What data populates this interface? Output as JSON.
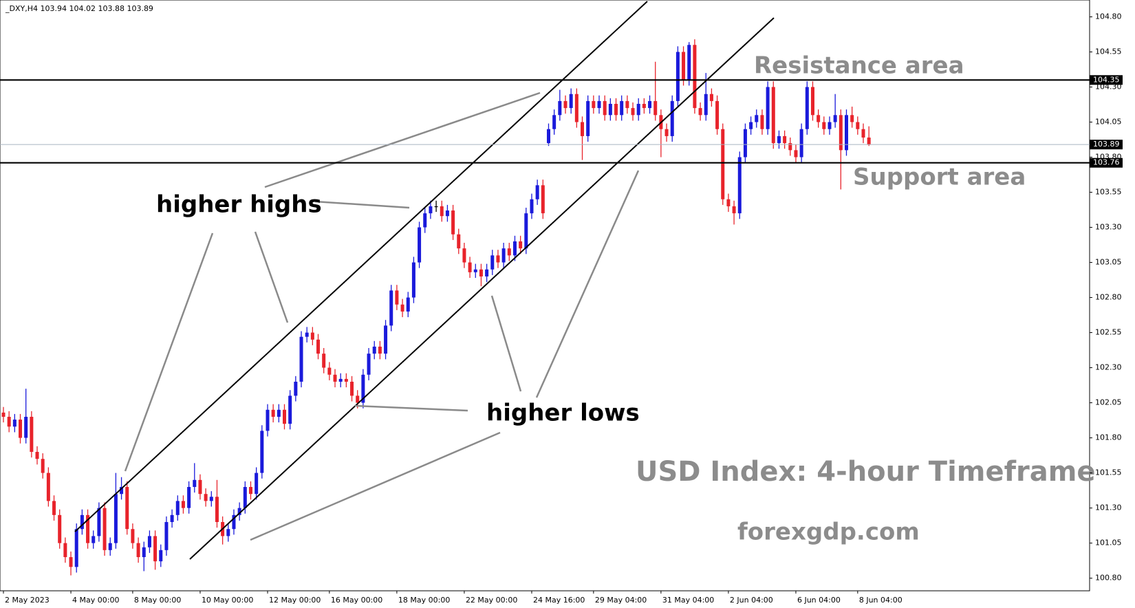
{
  "chart_data": {
    "type": "candlestick",
    "header": "_DXY,H4  103.94 104.02 103.88 103.89",
    "annotations": {
      "resistance": "Resistance area",
      "support": "Support area",
      "higher_highs": "higher highs",
      "higher_lows": "higher lows",
      "title": "USD Index: 4-hour Timeframe",
      "source": "forexgdp.com"
    },
    "up_color": "#1a1adb",
    "down_color": "#e8232b",
    "resistance": 104.35,
    "support": 103.76,
    "last_price": 103.89,
    "ylim": [
      100.71,
      104.92
    ],
    "yticks": [
      {
        "value": 100.8,
        "label": "100.80"
      },
      101.05,
      {
        "value": 101.3,
        "label": "101.30"
      },
      101.55,
      {
        "value": 101.8,
        "label": "101.80"
      },
      102.05,
      {
        "value": 102.3,
        "label": "102.30"
      },
      102.55,
      {
        "value": 102.8,
        "label": "102.80"
      },
      103.05,
      {
        "value": 103.3,
        "label": "103.30"
      },
      103.55,
      {
        "value": 103.8,
        "label": "103.80"
      },
      104.05,
      {
        "value": 104.3,
        "label": "104.30"
      },
      104.55,
      {
        "value": 104.8,
        "label": "104.80"
      }
    ],
    "categories": [
      "2 May 2023",
      null,
      null,
      null,
      null,
      null,
      null,
      null,
      null,
      null,
      null,
      null,
      "4 May 00:00",
      null,
      null,
      null,
      null,
      null,
      null,
      null,
      null,
      null,
      null,
      "8 May 00:00",
      null,
      null,
      null,
      null,
      null,
      null,
      null,
      null,
      null,
      null,
      null,
      "10 May 00:00",
      null,
      null,
      null,
      null,
      null,
      null,
      null,
      null,
      null,
      null,
      null,
      "12 May 00:00",
      null,
      null,
      null,
      null,
      null,
      null,
      null,
      null,
      null,
      null,
      "16 May 00:00",
      null,
      null,
      null,
      null,
      null,
      null,
      null,
      null,
      null,
      null,
      null,
      "18 May 00:00",
      null,
      null,
      null,
      null,
      null,
      null,
      null,
      null,
      null,
      null,
      null,
      "22 May 00:00",
      null,
      null,
      null,
      null,
      null,
      null,
      null,
      null,
      null,
      null,
      null,
      "24 May 16:00",
      null,
      null,
      null,
      null,
      null,
      null,
      null,
      null,
      null,
      null,
      "29 May 04:00",
      null,
      null,
      null,
      null,
      null,
      null,
      null,
      null,
      null,
      null,
      null,
      "31 May 04:00",
      null,
      null,
      null,
      null,
      null,
      null,
      null,
      null,
      null,
      null,
      null,
      "2 Jun 04:00",
      null,
      null,
      null,
      null,
      null,
      null,
      null,
      null,
      null,
      null,
      null,
      "6 Jun 04:00",
      null,
      null,
      null,
      null,
      null,
      null,
      null,
      null,
      null,
      null,
      "8 Jun 04:00",
      null,
      null
    ],
    "open": [
      101.98,
      101.95,
      101.88,
      101.93,
      101.8,
      101.95,
      101.7,
      101.65,
      101.55,
      101.35,
      101.25,
      101.05,
      100.95,
      100.88,
      101.15,
      101.25,
      101.05,
      101.1,
      101.3,
      101.0,
      101.05,
      101.4,
      101.45,
      101.15,
      101.05,
      100.95,
      101.02,
      101.1,
      100.92,
      101.0,
      101.2,
      101.25,
      101.35,
      101.3,
      101.45,
      101.5,
      101.4,
      101.35,
      101.38,
      101.2,
      101.1,
      101.15,
      101.25,
      101.3,
      101.45,
      101.4,
      101.55,
      101.85,
      102.0,
      101.95,
      102.0,
      101.9,
      102.1,
      102.2,
      102.52,
      102.55,
      102.5,
      102.4,
      102.3,
      102.25,
      102.2,
      102.22,
      102.2,
      102.1,
      102.05,
      102.25,
      102.4,
      102.45,
      102.4,
      102.6,
      102.85,
      102.75,
      102.7,
      102.8,
      103.05,
      103.3,
      103.4,
      103.45,
      103.45,
      103.38,
      103.42,
      103.25,
      103.15,
      103.05,
      102.98,
      103.0,
      102.95,
      103.0,
      103.1,
      103.05,
      103.15,
      103.1,
      103.2,
      103.15,
      103.4,
      103.5,
      103.6,
      103.9,
      104.0,
      104.1,
      104.2,
      104.15,
      104.25,
      104.05,
      103.95,
      104.2,
      104.15,
      104.2,
      104.1,
      104.18,
      104.1,
      104.2,
      104.15,
      104.1,
      104.18,
      104.15,
      104.2,
      104.1,
      104.0,
      103.95,
      104.2,
      104.55,
      104.35,
      104.6,
      104.15,
      104.1,
      104.25,
      104.2,
      104.0,
      103.5,
      103.45,
      103.4,
      103.8,
      104.0,
      104.05,
      104.1,
      104.0,
      104.3,
      103.9,
      103.95,
      103.9,
      103.85,
      103.8,
      104.0,
      104.3,
      104.1,
      104.05,
      104.0,
      104.05,
      104.1,
      103.85,
      104.1,
      104.05,
      104.0,
      103.94
    ],
    "high": [
      102.02,
      101.99,
      101.97,
      101.97,
      102.15,
      101.99,
      101.74,
      101.69,
      101.59,
      101.39,
      101.29,
      101.09,
      100.99,
      101.19,
      101.29,
      101.29,
      101.14,
      101.34,
      101.34,
      101.09,
      101.55,
      101.52,
      101.49,
      101.19,
      101.09,
      101.06,
      101.14,
      101.14,
      101.04,
      101.24,
      101.29,
      101.39,
      101.39,
      101.49,
      101.62,
      101.54,
      101.44,
      101.42,
      101.5,
      101.24,
      101.19,
      101.29,
      101.34,
      101.49,
      101.49,
      101.59,
      101.89,
      102.04,
      102.04,
      102.04,
      102.04,
      102.14,
      102.24,
      102.56,
      102.59,
      102.59,
      102.54,
      102.44,
      102.34,
      102.29,
      102.26,
      102.26,
      102.24,
      102.14,
      102.29,
      102.44,
      102.49,
      102.49,
      102.64,
      102.89,
      102.89,
      102.79,
      102.84,
      103.09,
      103.34,
      103.44,
      103.49,
      103.49,
      103.49,
      103.46,
      103.46,
      103.29,
      103.19,
      103.09,
      103.04,
      103.04,
      103.04,
      103.14,
      103.14,
      103.19,
      103.19,
      103.24,
      103.24,
      103.44,
      103.54,
      103.64,
      103.64,
      104.04,
      104.14,
      104.28,
      104.24,
      104.29,
      104.29,
      104.09,
      104.24,
      104.24,
      104.24,
      104.24,
      104.22,
      104.22,
      104.24,
      104.24,
      104.19,
      104.22,
      104.22,
      104.24,
      104.48,
      104.14,
      104.04,
      104.24,
      104.59,
      104.59,
      104.62,
      104.64,
      104.19,
      104.4,
      104.29,
      104.24,
      104.04,
      103.54,
      103.49,
      103.84,
      104.04,
      104.09,
      104.14,
      104.14,
      104.34,
      104.34,
      103.99,
      103.99,
      103.94,
      103.89,
      104.04,
      104.34,
      104.34,
      104.14,
      104.09,
      104.09,
      104.25,
      104.14,
      104.14,
      104.16,
      104.09,
      104.04,
      104.02
    ],
    "low": [
      101.91,
      101.84,
      101.84,
      101.76,
      101.76,
      101.66,
      101.61,
      101.51,
      101.31,
      101.21,
      101.01,
      100.91,
      100.82,
      100.84,
      101.11,
      101.01,
      101.01,
      101.06,
      100.96,
      100.96,
      101.01,
      101.36,
      101.11,
      101.01,
      100.91,
      100.85,
      100.98,
      100.86,
      100.88,
      100.96,
      101.16,
      101.21,
      101.26,
      101.26,
      101.41,
      101.36,
      101.31,
      101.31,
      101.16,
      101.04,
      101.06,
      101.11,
      101.21,
      101.26,
      101.36,
      101.36,
      101.51,
      101.81,
      101.91,
      101.91,
      101.86,
      101.86,
      102.06,
      102.16,
      102.48,
      102.46,
      102.36,
      102.26,
      102.21,
      102.16,
      102.16,
      102.16,
      102.06,
      102.01,
      102.01,
      102.21,
      102.36,
      102.36,
      102.36,
      102.56,
      102.71,
      102.66,
      102.66,
      102.76,
      103.01,
      103.26,
      103.36,
      103.41,
      103.34,
      103.34,
      103.21,
      103.11,
      103.01,
      102.94,
      102.94,
      102.88,
      102.91,
      102.96,
      103.01,
      103.01,
      103.06,
      103.06,
      103.11,
      103.11,
      103.36,
      103.46,
      103.36,
      103.88,
      103.96,
      104.06,
      104.11,
      104.11,
      104.01,
      103.78,
      103.91,
      104.11,
      104.11,
      104.06,
      104.06,
      104.06,
      104.06,
      104.11,
      104.06,
      104.06,
      104.11,
      104.11,
      104.06,
      103.8,
      103.91,
      103.91,
      104.16,
      104.31,
      104.31,
      104.11,
      104.06,
      104.06,
      104.16,
      103.96,
      103.46,
      103.41,
      103.32,
      103.36,
      103.76,
      103.96,
      104.01,
      103.96,
      103.96,
      103.86,
      103.86,
      103.86,
      103.81,
      103.76,
      103.76,
      103.96,
      104.06,
      104.01,
      103.96,
      103.96,
      104.01,
      103.57,
      103.81,
      104.01,
      103.96,
      103.9,
      103.88
    ],
    "close": [
      101.95,
      101.88,
      101.93,
      101.8,
      101.95,
      101.7,
      101.65,
      101.55,
      101.35,
      101.25,
      101.05,
      100.95,
      100.88,
      101.15,
      101.25,
      101.05,
      101.1,
      101.3,
      101.0,
      101.05,
      101.4,
      101.45,
      101.15,
      101.05,
      100.95,
      101.02,
      101.1,
      100.92,
      101.0,
      101.2,
      101.25,
      101.35,
      101.3,
      101.45,
      101.5,
      101.4,
      101.35,
      101.38,
      101.2,
      101.1,
      101.15,
      101.25,
      101.3,
      101.45,
      101.4,
      101.55,
      101.85,
      102.0,
      101.95,
      102.0,
      101.9,
      102.1,
      102.2,
      102.52,
      102.55,
      102.5,
      102.4,
      102.3,
      102.25,
      102.2,
      102.22,
      102.2,
      102.1,
      102.05,
      102.25,
      102.4,
      102.45,
      102.4,
      102.6,
      102.85,
      102.75,
      102.7,
      102.8,
      103.05,
      103.3,
      103.4,
      103.45,
      103.45,
      103.38,
      103.42,
      103.25,
      103.15,
      103.05,
      102.98,
      103.0,
      102.95,
      103.0,
      103.1,
      103.05,
      103.15,
      103.1,
      103.2,
      103.15,
      103.4,
      103.5,
      103.6,
      103.4,
      104.0,
      104.1,
      104.2,
      104.15,
      104.25,
      104.05,
      103.95,
      104.2,
      104.15,
      104.2,
      104.1,
      104.18,
      104.1,
      104.2,
      104.15,
      104.1,
      104.18,
      104.15,
      104.2,
      104.1,
      104.0,
      103.95,
      104.2,
      104.55,
      104.35,
      104.6,
      104.15,
      104.1,
      104.25,
      104.2,
      104.0,
      103.5,
      103.45,
      103.4,
      103.8,
      104.0,
      104.05,
      104.1,
      104.0,
      104.3,
      103.9,
      103.95,
      103.9,
      103.85,
      103.8,
      104.0,
      104.3,
      104.1,
      104.05,
      104.0,
      104.05,
      104.1,
      103.85,
      104.1,
      104.05,
      104.0,
      103.94,
      103.89
    ]
  }
}
